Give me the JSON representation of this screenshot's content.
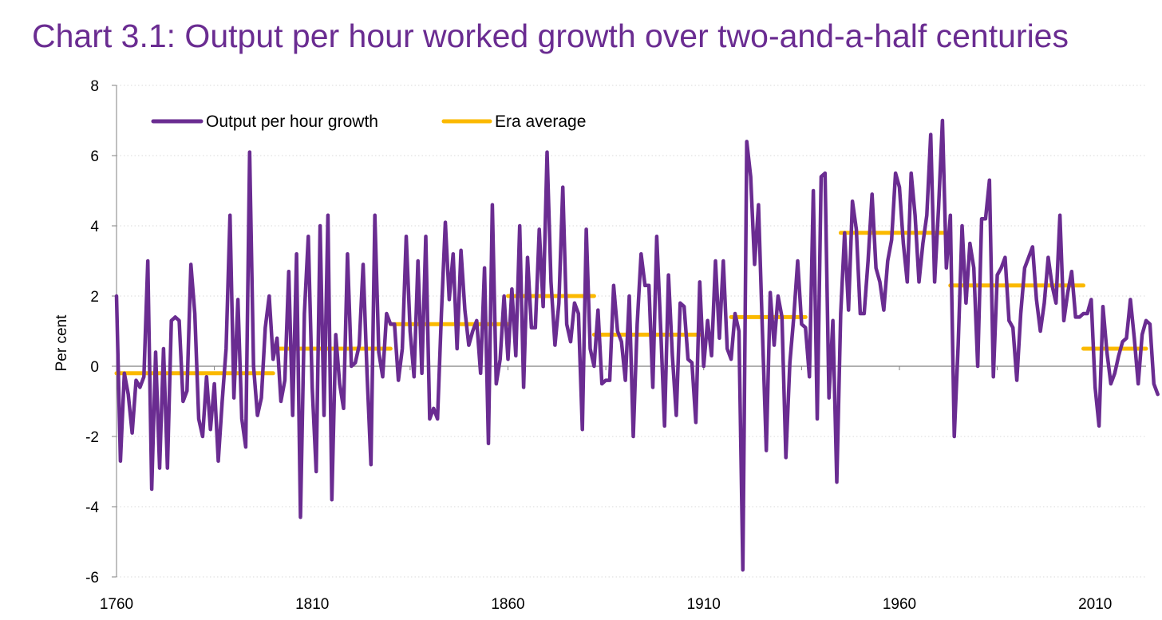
{
  "chart_data": {
    "type": "line",
    "title": "Chart 3.1: Output per hour worked growth over two-and-a-half centuries",
    "xlabel": "",
    "ylabel": "Per cent",
    "xlim": [
      1760,
      2023
    ],
    "ylim": [
      -6,
      8
    ],
    "yticks": [
      "8",
      "6",
      "4",
      "2",
      "0",
      "-2",
      "-4",
      "-6"
    ],
    "yticks_values": [
      8,
      6,
      4,
      2,
      0,
      -2,
      -4,
      -6
    ],
    "xticks": [
      "1760",
      "1810",
      "1860",
      "1910",
      "1960",
      "2010"
    ],
    "xticks_values": [
      1760,
      1810,
      1860,
      1910,
      1960,
      2010
    ],
    "grid": true,
    "legend_position": "top-left",
    "colors": {
      "series": "#6a2c91",
      "average": "#fbb900",
      "grid": "#d9d9d9",
      "axis": "#808080"
    },
    "series": [
      {
        "name": "Output per hour growth",
        "x_start": 1760,
        "values": [
          2.0,
          -2.7,
          -0.2,
          -0.8,
          -1.9,
          -0.4,
          -0.6,
          -0.3,
          3.0,
          -3.5,
          0.4,
          -2.9,
          0.5,
          -2.9,
          1.3,
          1.4,
          1.3,
          -1.0,
          -0.7,
          2.9,
          1.5,
          -1.5,
          -2.0,
          -0.3,
          -1.8,
          -0.5,
          -2.7,
          -1.0,
          0.5,
          4.3,
          -0.9,
          1.9,
          -1.5,
          -2.3,
          6.1,
          0.0,
          -1.4,
          -0.9,
          1.1,
          2.0,
          0.2,
          0.8,
          -1.0,
          -0.4,
          2.7,
          -1.4,
          3.2,
          -4.3,
          1.5,
          3.7,
          -0.6,
          -3.0,
          4.0,
          -1.4,
          4.3,
          -3.8,
          0.9,
          -0.5,
          -1.2,
          3.2,
          0.0,
          0.1,
          0.6,
          2.9,
          -0.2,
          -2.8,
          4.3,
          0.4,
          -0.3,
          1.5,
          1.2,
          1.2,
          -0.4,
          0.5,
          3.7,
          1.0,
          -0.3,
          3.0,
          -0.2,
          3.7,
          -1.5,
          -1.2,
          -1.5,
          1.5,
          4.1,
          1.9,
          3.2,
          0.5,
          3.3,
          1.6,
          0.6,
          1.0,
          1.3,
          -0.2,
          2.8,
          -2.2,
          4.6,
          -0.5,
          0.2,
          2.0,
          0.2,
          2.2,
          0.3,
          4.0,
          -0.6,
          3.1,
          1.1,
          1.1,
          3.9,
          1.7,
          6.1,
          2.4,
          0.6,
          1.8,
          5.1,
          1.2,
          0.7,
          1.8,
          1.5,
          -1.8,
          3.9,
          0.5,
          0.0,
          1.6,
          -0.5,
          -0.4,
          -0.4,
          2.3,
          1.0,
          0.7,
          -0.4,
          2.0,
          -2.0,
          1.2,
          3.2,
          2.3,
          2.3,
          -0.6,
          3.7,
          1.1,
          -1.7,
          2.6,
          0.3,
          -1.4,
          1.8,
          1.7,
          0.2,
          0.1,
          -1.6,
          2.4,
          0.0,
          1.3,
          0.3,
          3.0,
          0.8,
          3.0,
          0.5,
          0.2,
          1.5,
          1.0,
          -5.8,
          6.4,
          5.4,
          2.9,
          4.6,
          1.0,
          -2.4,
          2.1,
          0.6,
          2.0,
          1.4,
          -2.6,
          0.1,
          1.4,
          3.0,
          1.2,
          1.1,
          -0.3,
          5.0,
          -1.5,
          5.4,
          5.5,
          -0.9,
          1.3,
          -3.3,
          1.5,
          3.8,
          1.6,
          4.7,
          3.9,
          1.5,
          1.5,
          3.0,
          4.9,
          2.8,
          2.4,
          1.6,
          3.0,
          3.6,
          5.5,
          5.1,
          3.5,
          2.4,
          5.5,
          4.3,
          2.4,
          3.5,
          4.3,
          6.6,
          2.4,
          4.5,
          7.0,
          2.8,
          4.3,
          -2.0,
          0.6,
          4.0,
          1.8,
          3.5,
          2.8,
          0.0,
          4.2,
          4.2,
          5.3,
          -0.3,
          2.6,
          2.8,
          3.1,
          1.3,
          1.1,
          -0.4,
          1.5,
          2.8,
          3.1,
          3.4,
          1.9,
          1.0,
          1.8,
          3.1,
          2.3,
          1.8,
          4.3,
          1.3,
          2.1,
          2.7,
          1.4,
          1.4,
          1.5,
          1.5,
          1.9,
          -0.6,
          -1.7,
          1.7,
          0.4,
          -0.5,
          -0.2,
          0.3,
          0.7,
          0.8,
          1.9,
          0.8,
          -0.5,
          0.9,
          1.3,
          1.2,
          -0.5,
          -0.8
        ]
      },
      {
        "name": "Era average",
        "segments": [
          {
            "x0": 1760,
            "x1": 1800,
            "value": -0.2
          },
          {
            "x0": 1800,
            "x1": 1830,
            "value": 0.5
          },
          {
            "x0": 1830,
            "x1": 1860,
            "value": 1.2
          },
          {
            "x0": 1860,
            "x1": 1882,
            "value": 2.0
          },
          {
            "x0": 1882,
            "x1": 1909,
            "value": 0.9
          },
          {
            "x0": 1917,
            "x1": 1936,
            "value": 1.4
          },
          {
            "x0": 1945,
            "x1": 1973,
            "value": 3.8
          },
          {
            "x0": 1973,
            "x1": 2007,
            "value": 2.3
          },
          {
            "x0": 2007,
            "x1": 2023,
            "value": 0.5
          }
        ]
      }
    ]
  }
}
